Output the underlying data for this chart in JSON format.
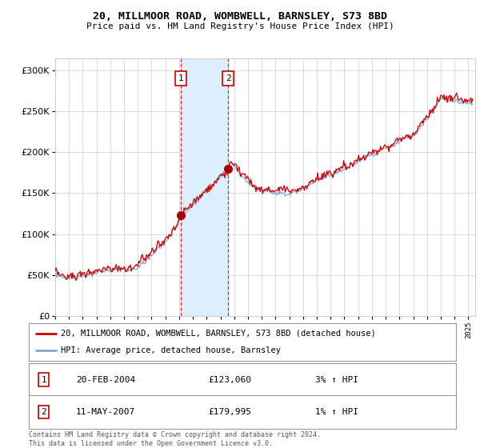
{
  "title1": "20, MILLMOOR ROAD, WOMBWELL, BARNSLEY, S73 8BD",
  "title2": "Price paid vs. HM Land Registry's House Price Index (HPI)",
  "ytick_values": [
    0,
    50000,
    100000,
    150000,
    200000,
    250000,
    300000
  ],
  "ylim": [
    0,
    315000
  ],
  "xlim_start": 1995.0,
  "xlim_end": 2025.5,
  "transaction1_date": 2004.13,
  "transaction1_price": 123060,
  "transaction1_label": "1",
  "transaction2_date": 2007.55,
  "transaction2_price": 179995,
  "transaction2_label": "2",
  "legend_line1": "20, MILLMOOR ROAD, WOMBWELL, BARNSLEY, S73 8BD (detached house)",
  "legend_line2": "HPI: Average price, detached house, Barnsley",
  "table_row1_num": "1",
  "table_row1_date": "20-FEB-2004",
  "table_row1_price": "£123,060",
  "table_row1_hpi": "3% ↑ HPI",
  "table_row2_num": "2",
  "table_row2_date": "11-MAY-2007",
  "table_row2_price": "£179,995",
  "table_row2_hpi": "1% ↑ HPI",
  "footer": "Contains HM Land Registry data © Crown copyright and database right 2024.\nThis data is licensed under the Open Government Licence v3.0.",
  "line_color_red": "#cc0000",
  "line_color_blue": "#88aacc",
  "shade_color": "#ddeeff",
  "marker_color_red": "#aa0000",
  "grid_color": "#cccccc",
  "background_color": "#ffffff"
}
